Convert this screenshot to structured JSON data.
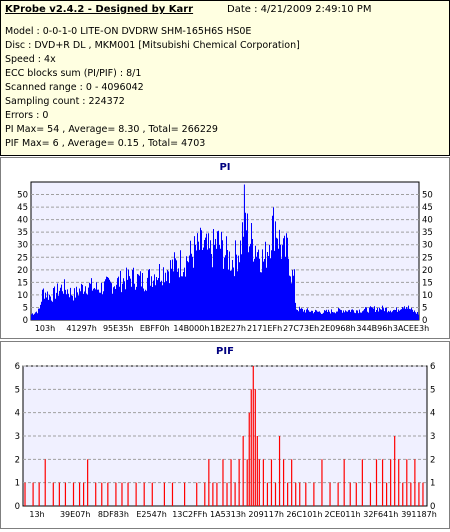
{
  "header": {
    "title": "KProbe v2.4.2 - Designed by Karr",
    "date": "Date : 4/21/2009 2:49:10 PM",
    "lines": [
      "Model : 0-0-1-0 LITE-ON DVDRW SHM-165H6S HS0E",
      "Disc : DVD+R DL , MKM001 [Mitsubishi Chemical Corporation]",
      "Speed : 4x",
      "ECC blocks sum (PI/PIF) : 8/1",
      "Scanned range : 0 - 4096042",
      "Sampling count : 224372",
      "Errors : 0",
      "PI Max= 54 , Average= 8.30 , Total= 266229",
      "PIF Max= 6 , Average= 0.15 , Total= 4703"
    ]
  },
  "colors": {
    "pi": "#0000ff",
    "pif": "#ff0000",
    "plot_bg": "#f0f0ff",
    "title": "#000080"
  },
  "chart_data": [
    {
      "type": "bar",
      "title": "PI",
      "ylim": [
        0,
        55
      ],
      "yticks": [
        0,
        5,
        10,
        15,
        20,
        25,
        30,
        35,
        40,
        45,
        50
      ],
      "xtick_labels": [
        "103h",
        "41297h",
        "95E35h",
        "EBFF0h",
        "14B000h",
        "1B2E27h",
        "2171EFh",
        "27C73Eh",
        "2E0968h",
        "344B96h",
        "3ACEE3h"
      ],
      "grid": true,
      "envelope": [
        [
          0,
          3
        ],
        [
          2,
          5
        ],
        [
          3,
          15
        ],
        [
          5,
          12
        ],
        [
          8,
          17
        ],
        [
          11,
          13
        ],
        [
          14,
          18
        ],
        [
          17,
          16
        ],
        [
          20,
          18
        ],
        [
          23,
          20
        ],
        [
          26,
          22
        ],
        [
          29,
          20
        ],
        [
          32,
          24
        ],
        [
          35,
          26
        ],
        [
          38,
          29
        ],
        [
          40,
          31
        ],
        [
          42,
          35
        ],
        [
          44,
          38
        ],
        [
          46,
          34
        ],
        [
          48,
          40
        ],
        [
          50,
          34
        ],
        [
          52,
          30
        ],
        [
          54,
          38
        ],
        [
          55,
          54
        ],
        [
          56,
          42
        ],
        [
          58,
          38
        ],
        [
          60,
          30
        ],
        [
          62,
          47
        ],
        [
          63,
          50
        ],
        [
          64,
          40
        ],
        [
          65,
          34
        ],
        [
          66,
          36
        ],
        [
          67,
          24
        ],
        [
          67.9,
          20
        ],
        [
          68.1,
          6
        ],
        [
          70,
          5
        ],
        [
          75,
          4
        ],
        [
          80,
          5
        ],
        [
          85,
          5
        ],
        [
          90,
          6
        ],
        [
          94,
          5
        ],
        [
          96,
          8
        ],
        [
          98,
          5
        ],
        [
          100,
          3
        ]
      ]
    },
    {
      "type": "bar",
      "title": "PIF",
      "ylim": [
        0,
        6
      ],
      "yticks": [
        0,
        1,
        2,
        3,
        4,
        5,
        6
      ],
      "xtick_labels": [
        "13h",
        "39E07h",
        "8DF83h",
        "E2547h",
        "13C2FFh",
        "1A5313h",
        "209117h",
        "26C101h",
        "2CE011h",
        "32F641h",
        "391187h"
      ],
      "grid": true,
      "bars": [
        [
          0.5,
          1
        ],
        [
          2.5,
          1
        ],
        [
          4,
          1
        ],
        [
          5.5,
          2
        ],
        [
          7.5,
          1
        ],
        [
          9,
          1
        ],
        [
          10.5,
          1
        ],
        [
          12.5,
          1
        ],
        [
          14,
          1
        ],
        [
          15,
          1
        ],
        [
          16,
          2
        ],
        [
          18,
          1
        ],
        [
          19.5,
          1
        ],
        [
          21,
          1
        ],
        [
          23,
          1
        ],
        [
          24.5,
          1
        ],
        [
          26,
          1
        ],
        [
          28,
          1
        ],
        [
          30,
          1
        ],
        [
          32,
          1
        ],
        [
          35,
          1
        ],
        [
          37,
          1
        ],
        [
          40,
          1
        ],
        [
          43,
          1
        ],
        [
          45,
          1
        ],
        [
          46,
          2
        ],
        [
          47,
          1
        ],
        [
          48,
          1
        ],
        [
          49.5,
          2
        ],
        [
          50.5,
          1
        ],
        [
          51.5,
          2
        ],
        [
          52.5,
          1
        ],
        [
          53.5,
          2
        ],
        [
          54.5,
          3
        ],
        [
          55.5,
          2
        ],
        [
          56,
          4
        ],
        [
          56.5,
          5
        ],
        [
          57,
          6
        ],
        [
          57.5,
          5
        ],
        [
          58,
          3
        ],
        [
          58.5,
          2
        ],
        [
          59.5,
          2
        ],
        [
          60.5,
          1
        ],
        [
          61.5,
          2
        ],
        [
          62.5,
          1
        ],
        [
          63.5,
          3
        ],
        [
          64.5,
          2
        ],
        [
          65.5,
          1
        ],
        [
          66.5,
          2
        ],
        [
          67.5,
          1
        ],
        [
          68.5,
          1
        ],
        [
          70,
          1
        ],
        [
          72,
          1
        ],
        [
          74,
          2
        ],
        [
          76,
          1
        ],
        [
          78,
          1
        ],
        [
          79.5,
          2
        ],
        [
          81,
          1
        ],
        [
          82.5,
          1
        ],
        [
          84,
          2
        ],
        [
          86,
          1
        ],
        [
          87.5,
          2
        ],
        [
          89,
          2
        ],
        [
          90,
          1
        ],
        [
          91,
          2
        ],
        [
          92,
          3
        ],
        [
          93,
          2
        ],
        [
          94,
          1
        ],
        [
          95,
          2
        ],
        [
          96,
          1
        ],
        [
          97,
          2
        ],
        [
          98,
          1
        ],
        [
          99,
          1
        ]
      ]
    }
  ]
}
